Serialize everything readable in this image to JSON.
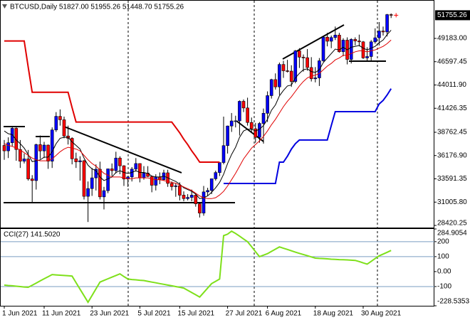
{
  "chart_data": [
    {
      "type": "candlestick",
      "title": "BTCUSD,Daily  51827.00 51955.26 51448.70 51755.26",
      "categories": [
        "1 Jun 2021",
        null,
        null,
        null,
        null,
        null,
        null,
        null,
        null,
        null,
        "11 Jun 2021",
        null,
        null,
        null,
        null,
        null,
        null,
        null,
        null,
        null,
        null,
        null,
        "23 Jun 2021",
        null,
        null,
        null,
        null,
        null,
        null,
        null,
        null,
        null,
        null,
        null,
        "5 Jul 2021",
        null,
        null,
        null,
        null,
        null,
        null,
        null,
        null,
        null,
        "15 Jul 2021",
        null,
        null,
        null,
        null,
        null,
        null,
        null,
        null,
        null,
        null,
        null,
        "27 Jul 2021",
        null,
        null,
        null,
        null,
        null,
        null,
        null,
        null,
        null,
        "6 Aug 2021",
        null,
        null,
        null,
        null,
        null,
        null,
        null,
        null,
        null,
        null,
        null,
        "18 Aug 2021",
        null,
        null,
        null,
        null,
        null,
        null,
        null,
        null,
        null,
        null,
        null,
        "30 Aug 2021",
        null,
        null,
        null,
        null,
        null,
        null,
        null
      ],
      "open": [
        37300,
        36700,
        37600,
        39200,
        36850,
        35550,
        35800,
        33580,
        33400,
        37390,
        36690,
        37340,
        35550,
        39020,
        40530,
        40150,
        38350,
        38090,
        35820,
        35480,
        35600,
        31650,
        32510,
        33700,
        34660,
        31590,
        32280,
        34700,
        34500,
        35900,
        35040,
        33570,
        33800,
        34670,
        35290,
        33690,
        34230,
        33860,
        32880,
        33810,
        33500,
        34260,
        33090,
        32730,
        32820,
        31780,
        31400,
        31530,
        31780,
        30820,
        29790,
        32140,
        32300,
        33600,
        34290,
        35400,
        37280,
        39460,
        40020,
        40030,
        42200,
        41460,
        39850,
        39150,
        38200,
        39740,
        40870,
        42830,
        44610,
        43800,
        46290,
        45590,
        45550,
        44400,
        47800,
        47100,
        47040,
        45950,
        44700,
        44800,
        46700,
        49320,
        48870,
        49280,
        49550,
        47700,
        48990,
        46850,
        49070,
        48900,
        48800,
        47020,
        47170,
        48800,
        49250,
        50000,
        49900,
        51827
      ],
      "high": [
        37900,
        38200,
        39400,
        39300,
        37900,
        36400,
        36800,
        34000,
        37500,
        38400,
        37700,
        37400,
        39300,
        41000,
        41300,
        40500,
        39500,
        38200,
        36500,
        36100,
        35700,
        33300,
        34800,
        35200,
        35500,
        32700,
        34700,
        35300,
        36600,
        36100,
        35100,
        33900,
        34900,
        35900,
        35300,
        35000,
        35000,
        33900,
        34100,
        34300,
        34600,
        34600,
        33300,
        33100,
        33200,
        32200,
        31900,
        32400,
        31900,
        31000,
        32800,
        32600,
        33600,
        34500,
        35400,
        40500,
        39500,
        40900,
        40600,
        42300,
        42400,
        42600,
        40400,
        39800,
        39900,
        41400,
        43300,
        44700,
        45300,
        46500,
        46700,
        46800,
        46200,
        47900,
        48100,
        47400,
        48000,
        47100,
        46000,
        47000,
        49400,
        49800,
        49500,
        50500,
        49800,
        49200,
        49300,
        49200,
        49300,
        49600,
        48900,
        48200,
        49000,
        50300,
        51000,
        50500,
        51900,
        51955.26
      ],
      "low": [
        35700,
        35900,
        37200,
        35600,
        34800,
        35300,
        33400,
        31000,
        32400,
        35800,
        35900,
        34700,
        34800,
        38800,
        39500,
        38100,
        37400,
        35200,
        34800,
        33400,
        31300,
        28800,
        31700,
        32300,
        31300,
        30200,
        32000,
        33900,
        34200,
        34100,
        32800,
        32700,
        33300,
        34400,
        33200,
        33500,
        33800,
        32100,
        32300,
        33000,
        33400,
        32700,
        32300,
        31600,
        31200,
        31100,
        31200,
        31100,
        30500,
        29300,
        29500,
        31700,
        31900,
        33400,
        33900,
        35200,
        36400,
        38800,
        39300,
        38400,
        41000,
        39500,
        38700,
        37600,
        37600,
        37500,
        39900,
        42500,
        43500,
        42900,
        44800,
        45400,
        43800,
        44200,
        45900,
        45500,
        45600,
        44400,
        44300,
        43900,
        46600,
        48300,
        48100,
        49000,
        47600,
        47200,
        46300,
        46400,
        48400,
        48300,
        46900,
        46700,
        46600,
        48600,
        48400,
        49500,
        49400,
        51448.7
      ],
      "close": [
        36700,
        37600,
        39200,
        36850,
        35550,
        35800,
        33580,
        33400,
        37390,
        36690,
        37340,
        35550,
        39020,
        40530,
        40150,
        38350,
        38090,
        35820,
        35480,
        35600,
        31650,
        32510,
        33700,
        34660,
        31590,
        32280,
        34700,
        34500,
        35900,
        35040,
        33570,
        33800,
        34670,
        35290,
        33690,
        34230,
        33860,
        32880,
        33810,
        33500,
        34260,
        33090,
        32730,
        32820,
        31780,
        31400,
        31530,
        31780,
        30820,
        29790,
        32140,
        32300,
        33600,
        34290,
        35400,
        37280,
        39460,
        40020,
        40030,
        42200,
        41460,
        39850,
        39150,
        38200,
        39740,
        40870,
        42830,
        44610,
        43800,
        46290,
        45590,
        45550,
        44400,
        47800,
        47100,
        47040,
        45950,
        44700,
        44800,
        46700,
        49320,
        48870,
        49280,
        49550,
        47700,
        48990,
        46850,
        49070,
        48900,
        48800,
        47020,
        47170,
        48800,
        49250,
        50000,
        49900,
        51827,
        51755.26
      ],
      "up_color": "#0000ff",
      "down_color": "#ff0000",
      "wick_color": "#000000",
      "overlays": [
        {
          "color": "#e00000",
          "width": 2,
          "values": [
            48900,
            48900,
            48900,
            48900,
            48900,
            48900,
            46000,
            43200,
            43200,
            43200,
            43200,
            43200,
            43200,
            43200,
            43200,
            43200,
            43200,
            41500,
            39900,
            39900,
            39900,
            39900,
            39900,
            39900,
            39900,
            39900,
            39900,
            39900,
            39900,
            39900,
            39900,
            39900,
            39900,
            39900,
            39900,
            39900,
            39900,
            39900,
            39900,
            39900,
            39900,
            39900,
            39900,
            39300,
            38700,
            38000,
            37400,
            36700,
            36100,
            35450,
            35450,
            35450,
            35450,
            35450,
            35450,
            null,
            null,
            null,
            null,
            null,
            null,
            null,
            null,
            null,
            null,
            null,
            null,
            null,
            null,
            null,
            null,
            null,
            null,
            null,
            null,
            null,
            null,
            null,
            null,
            null,
            null,
            null,
            null,
            null,
            null,
            null,
            null,
            null,
            null,
            null,
            null,
            null,
            null,
            null,
            null,
            null,
            null,
            null
          ]
        },
        {
          "color": "#0000e0",
          "width": 2,
          "values": [
            null,
            null,
            null,
            null,
            null,
            null,
            null,
            null,
            null,
            null,
            null,
            null,
            null,
            null,
            null,
            null,
            null,
            null,
            null,
            null,
            null,
            null,
            null,
            null,
            null,
            null,
            null,
            null,
            null,
            null,
            null,
            null,
            null,
            null,
            null,
            null,
            null,
            null,
            null,
            null,
            null,
            null,
            null,
            null,
            null,
            null,
            null,
            null,
            null,
            null,
            null,
            null,
            null,
            null,
            null,
            33080,
            33080,
            33080,
            33080,
            33080,
            33080,
            33080,
            33080,
            33080,
            33080,
            33080,
            33080,
            33080,
            33080,
            35450,
            35450,
            36100,
            36900,
            37500,
            37900,
            37900,
            37900,
            37900,
            37900,
            37900,
            37900,
            37900,
            39500,
            41050,
            41050,
            41050,
            41050,
            41050,
            41050,
            41050,
            41050,
            41050,
            41050,
            41050,
            41900,
            42300,
            42900,
            43600
          ]
        },
        {
          "color": "#000000",
          "width": 1,
          "values": [
            38900,
            38600,
            38500,
            37900,
            37500,
            37000,
            36300,
            35500,
            35600,
            35700,
            36000,
            36000,
            36600,
            37500,
            38100,
            38200,
            38200,
            37700,
            37300,
            36900,
            35900,
            35100,
            34700,
            34500,
            33800,
            33400,
            33600,
            33800,
            34300,
            34500,
            34300,
            34200,
            34300,
            34500,
            34300,
            34300,
            34200,
            33900,
            33800,
            33800,
            33900,
            33700,
            33500,
            33300,
            33000,
            32600,
            32400,
            32200,
            31900,
            31400,
            31500,
            31700,
            32100,
            32600,
            33200,
            34100,
            35300,
            36300,
            37100,
            38200,
            38900,
            39100,
            39100,
            38900,
            39100,
            39500,
            40200,
            41200,
            41800,
            42800,
            43400,
            43900,
            44000,
            44800,
            45300,
            45700,
            45800,
            45500,
            45400,
            45700,
            46500,
            47000,
            47500,
            48000,
            47900,
            48200,
            47900,
            48200,
            48300,
            48400,
            48100,
            47900,
            48100,
            48300,
            48700,
            49000,
            49600,
            50100
          ]
        },
        {
          "color": "#e00000",
          "width": 1,
          "values": [
            37500,
            37300,
            37200,
            37000,
            36800,
            36500,
            36200,
            35900,
            35700,
            35600,
            35600,
            35600,
            35800,
            36200,
            36600,
            36900,
            37100,
            37000,
            36900,
            36700,
            36200,
            35700,
            35300,
            35000,
            34600,
            34200,
            34000,
            33800,
            33800,
            33800,
            33700,
            33600,
            33600,
            33700,
            33700,
            33700,
            33700,
            33600,
            33500,
            33500,
            33400,
            33300,
            33200,
            33100,
            32900,
            32700,
            32500,
            32300,
            32000,
            31700,
            31500,
            31400,
            31400,
            31500,
            31800,
            32200,
            32800,
            33500,
            34200,
            35000,
            35800,
            36400,
            37000,
            37400,
            37800,
            38300,
            38900,
            39600,
            40200,
            40900,
            41600,
            42200,
            42700,
            43300,
            43900,
            44400,
            44800,
            45000,
            45100,
            45300,
            45700,
            46100,
            46400,
            46800,
            47000,
            47300,
            47300,
            47500,
            47700,
            47800,
            47800,
            47700,
            47800,
            47900,
            48100,
            48300,
            48600,
            49000
          ]
        }
      ],
      "ylim": [
        28183,
        53288
      ],
      "yticks": [
        {
          "value": 49183,
          "label": "49183.00"
        },
        46597.45,
        {
          "value": 44011.9,
          "label": "44011.90"
        },
        41426.35,
        38762.45,
        {
          "value": 36176.9,
          "label": "36176.90"
        },
        33591.35,
        {
          "value": 31005.8,
          "label": "31005.80"
        },
        28420.25
      ]
    },
    {
      "type": "line",
      "title": "CCI(27) 141.5020",
      "values": [
        -90,
        -93,
        -95,
        -98,
        -100,
        -103,
        -105,
        -91,
        -77,
        -62,
        -48,
        -34,
        -20,
        -22,
        -24,
        -26,
        -28,
        -30,
        -74,
        -118,
        -161,
        -205,
        -160,
        -115,
        -70,
        -59,
        -48,
        -37,
        -26,
        -15,
        -33,
        -50,
        -53,
        -55,
        -58,
        -60,
        -65,
        -70,
        -75,
        -80,
        -85,
        -90,
        -95,
        -100,
        -105,
        -110,
        -125,
        -140,
        -155,
        -170,
        -140,
        -110,
        -80,
        -65,
        -50,
        240,
        250,
        270,
        255,
        237,
        218,
        200,
        167,
        133,
        100,
        110,
        120,
        135,
        150,
        165,
        156,
        148,
        139,
        130,
        122,
        114,
        106,
        98,
        90,
        88,
        87,
        85,
        83,
        82,
        80,
        79,
        78,
        76,
        75,
        67,
        58,
        50,
        68,
        87,
        105,
        117,
        129,
        141.502
      ],
      "color": "#7ee01a",
      "ylim": [
        -228.5353,
        284.9054
      ],
      "yticks": [
        284.9054,
        200,
        100,
        {
          "value": 0,
          "label": "0.00"
        },
        -100,
        -228.5353
      ],
      "levels": [
        200,
        100,
        -100
      ],
      "level_color": "#7a9cc0"
    }
  ]
}
